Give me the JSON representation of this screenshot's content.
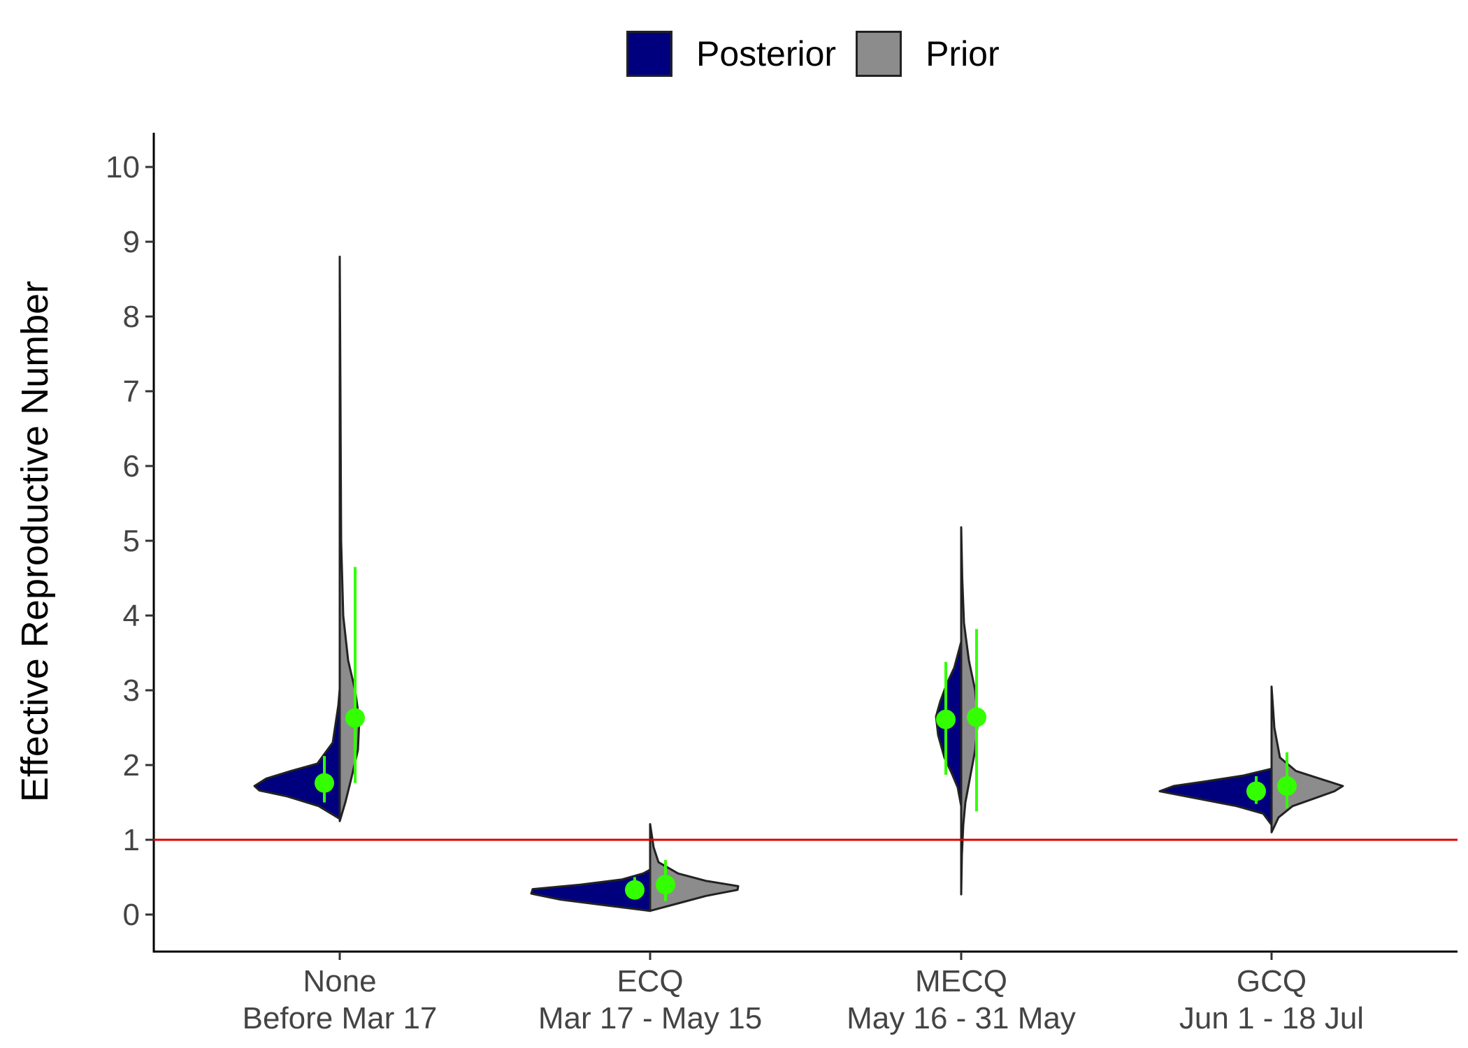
{
  "legend": {
    "items": [
      {
        "label": "Posterior",
        "color": "#00007f"
      },
      {
        "label": "Prior",
        "color": "#8c8c8c"
      }
    ]
  },
  "colors": {
    "posterior": "#00007f",
    "prior": "#8c8c8c",
    "outline": "#222222",
    "point": "#33ff00",
    "reference_line": "#e00000"
  },
  "chart_data": {
    "type": "violin",
    "title": "",
    "xlabel": "",
    "ylabel": "Effective Reproductive Number",
    "ylim": [
      -0.5,
      10.5
    ],
    "yticks": [
      0,
      1,
      2,
      3,
      4,
      5,
      6,
      7,
      8,
      9,
      10
    ],
    "reference_line": 1,
    "categories": [
      {
        "line1": "None",
        "line2": "Before Mar 17"
      },
      {
        "line1": "ECQ",
        "line2": "Mar 17 - May 15"
      },
      {
        "line1": "MECQ",
        "line2": "May 16 - 31 May"
      },
      {
        "line1": "GCQ",
        "line2": "Jun 1 - 18 Jul"
      }
    ],
    "series": [
      {
        "name": "Posterior",
        "summaries": [
          {
            "min": 1.28,
            "max": 3.02,
            "point": 1.76,
            "lower": 1.5,
            "upper": 2.12
          },
          {
            "min": 0.05,
            "max": 0.6,
            "point": 0.33,
            "lower": 0.22,
            "upper": 0.5
          },
          {
            "min": 1.45,
            "max": 3.65,
            "point": 2.61,
            "lower": 1.87,
            "upper": 3.38
          },
          {
            "min": 1.2,
            "max": 1.95,
            "point": 1.65,
            "lower": 1.48,
            "upper": 1.85
          }
        ]
      },
      {
        "name": "Prior",
        "summaries": [
          {
            "min": 1.25,
            "max": 8.8,
            "point": 2.63,
            "lower": 1.76,
            "upper": 4.65
          },
          {
            "min": 0.05,
            "max": 1.21,
            "point": 0.4,
            "lower": 0.18,
            "upper": 0.73
          },
          {
            "min": 0.27,
            "max": 5.18,
            "point": 2.64,
            "lower": 1.38,
            "upper": 3.82
          },
          {
            "min": 1.1,
            "max": 3.05,
            "point": 1.72,
            "lower": 1.42,
            "upper": 2.17
          }
        ]
      }
    ],
    "grid": false,
    "legend_position": "top"
  }
}
